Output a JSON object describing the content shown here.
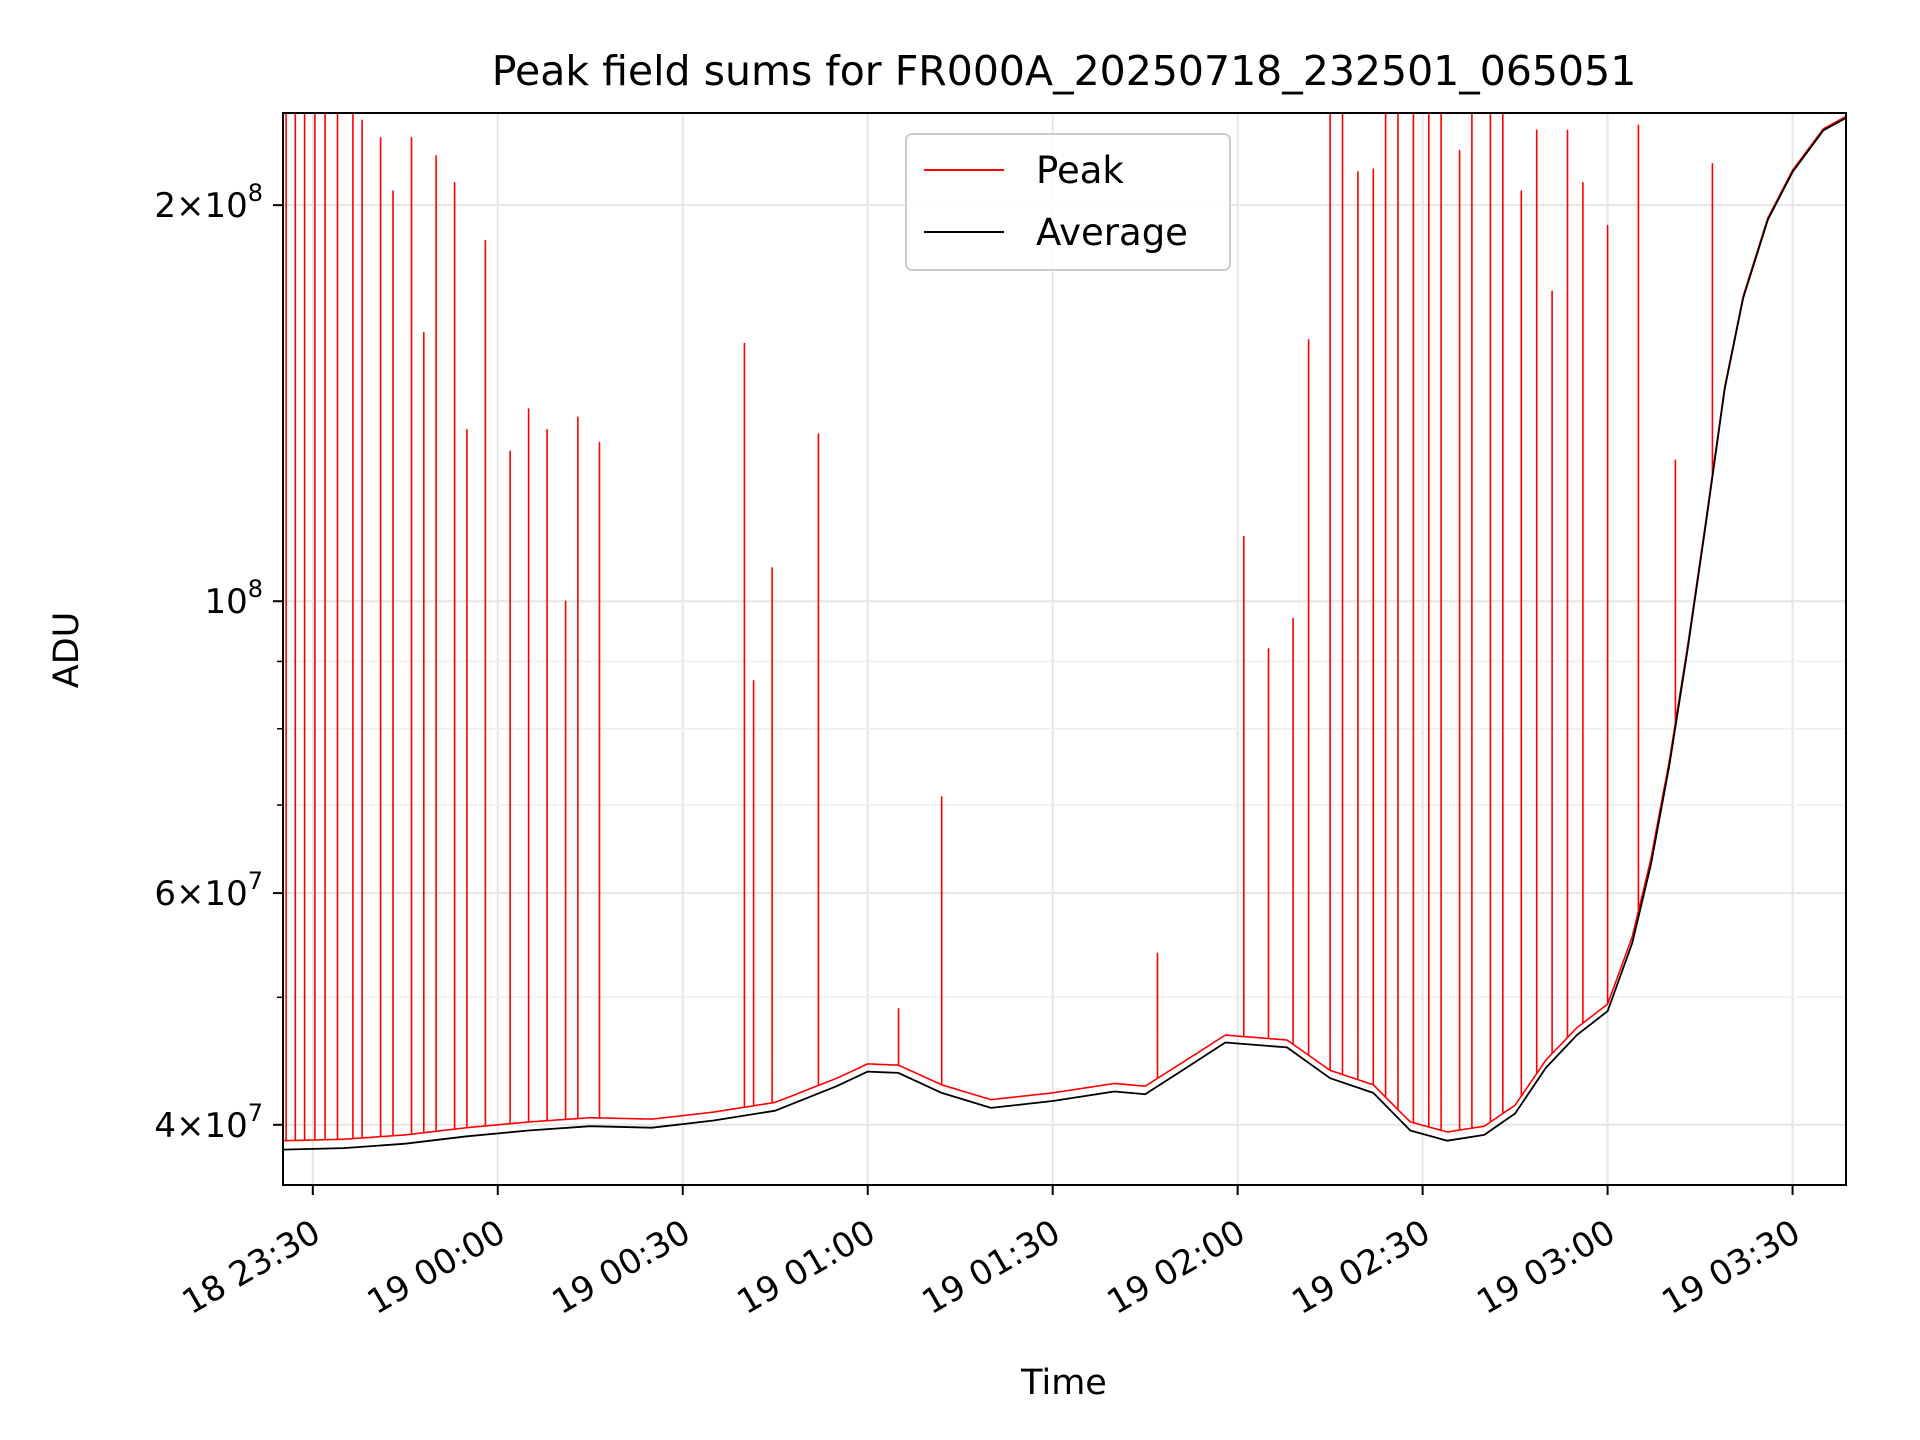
{
  "chart_data": {
    "type": "line",
    "title": "Peak field sums for FR000A_20250718_232501_065051",
    "xlabel": "Time",
    "ylabel": "ADU",
    "y_scale": "log",
    "ylim": [
      36000000,
      235000000
    ],
    "xlim": [
      "2025-07-18 23:25:10",
      "2025-07-19 03:38:40"
    ],
    "grid": true,
    "legend_position": "upper-center",
    "x_ticks": [
      {
        "value": "2025-07-18 23:30",
        "label": "18 23:30"
      },
      {
        "value": "2025-07-19 00:00",
        "label": "19 00:00"
      },
      {
        "value": "2025-07-19 00:30",
        "label": "19 00:30"
      },
      {
        "value": "2025-07-19 01:00",
        "label": "19 01:00"
      },
      {
        "value": "2025-07-19 01:30",
        "label": "19 01:30"
      },
      {
        "value": "2025-07-19 02:00",
        "label": "19 02:00"
      },
      {
        "value": "2025-07-19 02:30",
        "label": "19 02:30"
      },
      {
        "value": "2025-07-19 03:00",
        "label": "19 03:00"
      },
      {
        "value": "2025-07-19 03:30",
        "label": "19 03:30"
      }
    ],
    "y_ticks": [
      {
        "value": 40000000,
        "mantissa": "4",
        "exponent": "7"
      },
      {
        "value": 60000000,
        "mantissa": "6",
        "exponent": "7"
      },
      {
        "value": 100000000,
        "mantissa": "",
        "exponent": "8"
      },
      {
        "value": 200000000,
        "mantissa": "2",
        "exponent": "8"
      }
    ],
    "y_minor_ticks": [
      50000000,
      70000000,
      80000000,
      90000000
    ],
    "series": [
      {
        "name": "Average",
        "color": "#000000",
        "points": [
          [
            "2025-07-18 23:25:10",
            38300000
          ],
          [
            "2025-07-18 23:35",
            38400000
          ],
          [
            "2025-07-18 23:45",
            38700000
          ],
          [
            "2025-07-18 23:55",
            39200000
          ],
          [
            "2025-07-19 00:05",
            39600000
          ],
          [
            "2025-07-19 00:15",
            39900000
          ],
          [
            "2025-07-19 00:25",
            39800000
          ],
          [
            "2025-07-19 00:35",
            40300000
          ],
          [
            "2025-07-19 00:45",
            41000000
          ],
          [
            "2025-07-19 00:55",
            42800000
          ],
          [
            "2025-07-19 01:00",
            43900000
          ],
          [
            "2025-07-19 01:05",
            43800000
          ],
          [
            "2025-07-19 01:12",
            42300000
          ],
          [
            "2025-07-19 01:20",
            41200000
          ],
          [
            "2025-07-19 01:30",
            41700000
          ],
          [
            "2025-07-19 01:40",
            42400000
          ],
          [
            "2025-07-19 01:45",
            42200000
          ],
          [
            "2025-07-19 01:52",
            44300000
          ],
          [
            "2025-07-19 01:58",
            46200000
          ],
          [
            "2025-07-19 02:08",
            45800000
          ],
          [
            "2025-07-19 02:15",
            43400000
          ],
          [
            "2025-07-19 02:22",
            42300000
          ],
          [
            "2025-07-19 02:28",
            39600000
          ],
          [
            "2025-07-19 02:34",
            38900000
          ],
          [
            "2025-07-19 02:40",
            39300000
          ],
          [
            "2025-07-19 02:45",
            40800000
          ],
          [
            "2025-07-19 02:50",
            44200000
          ],
          [
            "2025-07-19 02:55",
            46800000
          ],
          [
            "2025-07-19 03:00",
            48800000
          ],
          [
            "2025-07-19 03:04",
            55000000
          ],
          [
            "2025-07-19 03:07",
            63000000
          ],
          [
            "2025-07-19 03:10",
            75000000
          ],
          [
            "2025-07-19 03:13",
            92000000
          ],
          [
            "2025-07-19 03:16",
            115000000
          ],
          [
            "2025-07-19 03:19",
            145000000
          ],
          [
            "2025-07-19 03:22",
            170000000
          ],
          [
            "2025-07-19 03:26",
            195000000
          ],
          [
            "2025-07-19 03:30",
            212000000
          ],
          [
            "2025-07-19 03:35",
            228000000
          ],
          [
            "2025-07-19 03:38:40",
            233000000
          ]
        ]
      },
      {
        "name": "Peak",
        "color": "#ff0000",
        "offset_above_average": 600000,
        "spikes": [
          [
            "2025-07-18 23:25:40",
            235000000
          ],
          [
            "2025-07-18 23:27:10",
            235000000
          ],
          [
            "2025-07-18 23:28:40",
            235000000
          ],
          [
            "2025-07-18 23:30:20",
            235000000
          ],
          [
            "2025-07-18 23:32:00",
            235000000
          ],
          [
            "2025-07-18 23:34:00",
            235000000
          ],
          [
            "2025-07-18 23:36:30",
            235000000
          ],
          [
            "2025-07-18 23:38:00",
            232000000
          ],
          [
            "2025-07-18 23:41:00",
            225000000
          ],
          [
            "2025-07-18 23:43:00",
            205000000
          ],
          [
            "2025-07-18 23:46:00",
            225000000
          ],
          [
            "2025-07-18 23:48:00",
            160000000
          ],
          [
            "2025-07-18 23:50:00",
            218000000
          ],
          [
            "2025-07-18 23:53:00",
            208000000
          ],
          [
            "2025-07-18 23:55:00",
            135000000
          ],
          [
            "2025-07-18 23:58:00",
            188000000
          ],
          [
            "2025-07-19 00:02:00",
            130000000
          ],
          [
            "2025-07-19 00:05:00",
            140000000
          ],
          [
            "2025-07-19 00:08:00",
            135000000
          ],
          [
            "2025-07-19 00:11:00",
            100000000
          ],
          [
            "2025-07-19 00:13:00",
            138000000
          ],
          [
            "2025-07-19 00:16:30",
            132000000
          ],
          [
            "2025-07-19 00:40:00",
            157000000
          ],
          [
            "2025-07-19 00:41:30",
            87000000
          ],
          [
            "2025-07-19 00:44:30",
            106000000
          ],
          [
            "2025-07-19 00:52:00",
            134000000
          ],
          [
            "2025-07-19 01:05:00",
            49000000
          ],
          [
            "2025-07-19 01:12:00",
            71000000
          ],
          [
            "2025-07-19 01:47:00",
            54000000
          ],
          [
            "2025-07-19 02:01:00",
            112000000
          ],
          [
            "2025-07-19 02:05:00",
            92000000
          ],
          [
            "2025-07-19 02:09:00",
            97000000
          ],
          [
            "2025-07-19 02:11:30",
            158000000
          ],
          [
            "2025-07-19 02:15:00",
            235000000
          ],
          [
            "2025-07-19 02:17:00",
            235000000
          ],
          [
            "2025-07-19 02:19:30",
            212000000
          ],
          [
            "2025-07-19 02:22:00",
            213000000
          ],
          [
            "2025-07-19 02:24:00",
            235000000
          ],
          [
            "2025-07-19 02:26:00",
            235000000
          ],
          [
            "2025-07-19 02:28:30",
            235000000
          ],
          [
            "2025-07-19 02:31:00",
            235000000
          ],
          [
            "2025-07-19 02:33:00",
            235000000
          ],
          [
            "2025-07-19 02:36:00",
            220000000
          ],
          [
            "2025-07-19 02:38:00",
            235000000
          ],
          [
            "2025-07-19 02:41:00",
            235000000
          ],
          [
            "2025-07-19 02:43:00",
            235000000
          ],
          [
            "2025-07-19 02:46:00",
            205000000
          ],
          [
            "2025-07-19 02:48:30",
            228000000
          ],
          [
            "2025-07-19 02:51:00",
            172000000
          ],
          [
            "2025-07-19 02:53:30",
            228000000
          ],
          [
            "2025-07-19 02:56:00",
            208000000
          ],
          [
            "2025-07-19 03:00:00",
            193000000
          ],
          [
            "2025-07-19 03:05:00",
            230000000
          ],
          [
            "2025-07-19 03:11:00",
            128000000
          ],
          [
            "2025-07-19 03:17:00",
            215000000
          ]
        ]
      }
    ]
  }
}
